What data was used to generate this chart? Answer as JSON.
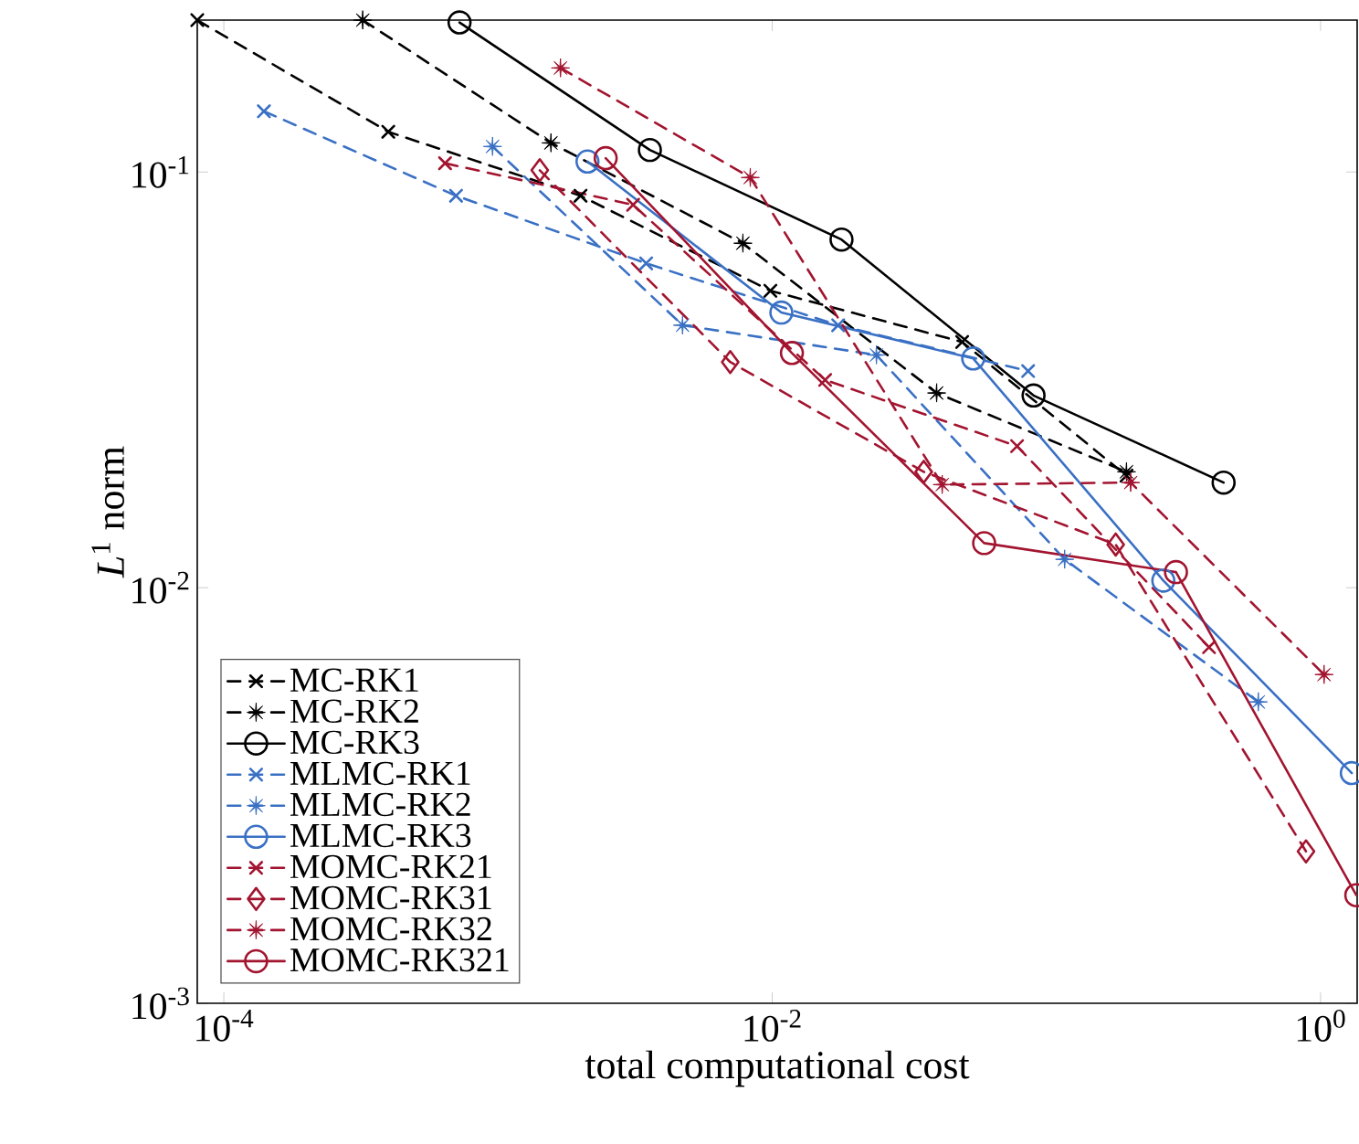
{
  "chart_data": {
    "type": "line",
    "xlabel": "total computational cost",
    "ylabel": "*L*$^{1}$ norm",
    "log": "xy",
    "xlim": [
      8e-05,
      1.36
    ],
    "ylim": [
      0.001,
      0.232
    ],
    "xticks": [
      {
        "value": 0.0001,
        "label": "10$^{-4}$"
      },
      {
        "value": 0.01,
        "label": "10$^{-2}$"
      },
      {
        "value": 1,
        "label": "10$^{0}$"
      }
    ],
    "yticks": [
      {
        "value": 0.001,
        "label": "10$^{-3}$"
      },
      {
        "value": 0.01,
        "label": "10$^{-2}$"
      },
      {
        "value": 0.1,
        "label": "10$^{-1}$"
      }
    ],
    "grid": false,
    "legend": "bottom left",
    "series": [
      {
        "name": "MC-RK1",
        "color": "#000000",
        "marker": "cross",
        "line_style": "dashed",
        "x": [
          8e-05,
          0.000398,
          0.002,
          0.00985,
          0.0493,
          0.196
        ],
        "values": [
          0.232,
          0.125,
          0.0877,
          0.0518,
          0.039,
          0.0186
        ]
      },
      {
        "name": "MC-RK2",
        "color": "#000000",
        "marker": "star",
        "line_style": "dashed",
        "x": [
          0.000321,
          0.00156,
          0.00782,
          0.0398,
          0.196
        ],
        "values": [
          0.232,
          0.1175,
          0.0674,
          0.0294,
          0.019
        ]
      },
      {
        "name": "MC-RK3",
        "color": "#000000",
        "marker": "circle",
        "line_style": "solid",
        "x": [
          0.000724,
          0.00358,
          0.0179,
          0.0898,
          0.443
        ],
        "values": [
          0.229,
          0.113,
          0.0688,
          0.029,
          0.0179
        ]
      },
      {
        "name": "MLMC-RK1",
        "color": "#3a70c4",
        "marker": "cross",
        "line_style": "dashed",
        "x": [
          0.00014,
          0.000703,
          0.00347,
          0.0174,
          0.0858
        ],
        "values": [
          0.14,
          0.0877,
          0.0603,
          0.0428,
          0.0332
        ]
      },
      {
        "name": "MLMC-RK2",
        "color": "#3a70c4",
        "marker": "star",
        "line_style": "dashed",
        "x": [
          0.000955,
          0.00471,
          0.024,
          0.1166,
          0.593
        ],
        "values": [
          0.1152,
          0.0428,
          0.0363,
          0.0117,
          0.00531
        ]
      },
      {
        "name": "MLMC-RK3",
        "color": "#3a70c4",
        "marker": "circle",
        "line_style": "solid",
        "x": [
          0.00212,
          0.0108,
          0.0541,
          0.267,
          1.3
        ],
        "values": [
          0.106,
          0.0459,
          0.0356,
          0.0104,
          0.00358
        ]
      },
      {
        "name": "MOMC-RK21",
        "color": "#a2142f",
        "marker": "cross",
        "line_style": "dashed",
        "x": [
          0.000641,
          0.00311,
          0.0156,
          0.0782,
          0.392
        ],
        "values": [
          0.105,
          0.0834,
          0.0316,
          0.0219,
          0.00719
        ]
      },
      {
        "name": "MOMC-RK31",
        "color": "#a2142f",
        "marker": "diamond",
        "line_style": "dashed",
        "x": [
          0.00142,
          0.00703,
          0.0357,
          0.179,
          0.885
        ],
        "values": [
          0.101,
          0.0349,
          0.019,
          0.0127,
          0.00232
        ]
      },
      {
        "name": "MOMC-RK32",
        "color": "#a2142f",
        "marker": "star",
        "line_style": "dashed",
        "x": [
          0.00169,
          0.00832,
          0.0417,
          0.203,
          1.03
        ],
        "values": [
          0.178,
          0.097,
          0.0177,
          0.0179,
          0.00618
        ]
      },
      {
        "name": "MOMC-RK321",
        "color": "#a2142f",
        "marker": "circle",
        "line_style": "solid",
        "x": [
          0.00247,
          0.0118,
          0.0593,
          0.297,
          1.35
        ],
        "values": [
          0.108,
          0.0367,
          0.0128,
          0.0109,
          0.00182
        ]
      }
    ]
  }
}
